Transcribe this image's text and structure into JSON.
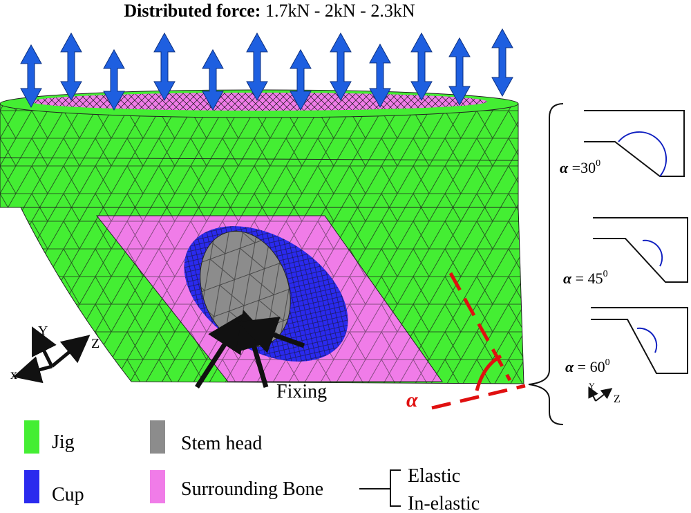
{
  "title": {
    "label": "Distributed force:",
    "values": "1.7kN - 2kN - 2.3kN"
  },
  "axes": {
    "y": "Y",
    "z": "Z",
    "x": "x"
  },
  "annotations": {
    "fixing": "Fixing",
    "alpha": "α"
  },
  "insets": [
    {
      "symbol": "α",
      "relation": "=",
      "angle": "30",
      "unit": "0"
    },
    {
      "symbol": "α",
      "relation": "=",
      "angle": "45",
      "unit": "0"
    },
    {
      "symbol": "α",
      "relation": "=",
      "angle": "60",
      "unit": "0"
    }
  ],
  "inset_axes": {
    "y": "Y",
    "z": "Z"
  },
  "legend": [
    "Jig",
    "Stem head",
    "Cup",
    "Surrounding Bone"
  ],
  "bone_types": [
    "Elastic",
    "In-elastic"
  ]
}
